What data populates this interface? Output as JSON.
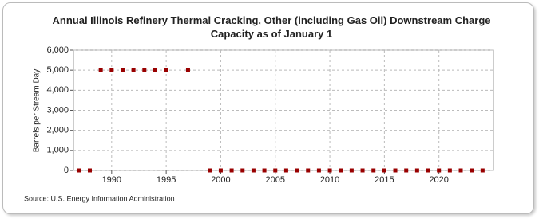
{
  "chart_data": {
    "type": "scatter",
    "title": "Annual Illinois Refinery Thermal Cracking, Other (including Gas Oil) Downstream Charge Capacity as of January 1",
    "ylabel": "Barrels per Stream Day",
    "source": "Source: U.S. Energy Information Administration",
    "x": [
      1987,
      1988,
      1989,
      1990,
      1991,
      1992,
      1993,
      1994,
      1995,
      1997,
      1999,
      2000,
      2001,
      2002,
      2003,
      2004,
      2005,
      2006,
      2007,
      2008,
      2009,
      2010,
      2011,
      2012,
      2013,
      2014,
      2015,
      2016,
      2017,
      2018,
      2019,
      2020,
      2021,
      2022,
      2023,
      2024
    ],
    "values": [
      0,
      0,
      5000,
      5000,
      5000,
      5000,
      5000,
      5000,
      5000,
      5000,
      0,
      0,
      0,
      0,
      0,
      0,
      0,
      0,
      0,
      0,
      0,
      0,
      0,
      0,
      0,
      0,
      0,
      0,
      0,
      0,
      0,
      0,
      0,
      0,
      0,
      0
    ],
    "color": "#990000",
    "xlim": [
      1986.5,
      2025
    ],
    "xticks": [
      1990,
      1995,
      2000,
      2005,
      2010,
      2015,
      2020
    ],
    "ylim": [
      0,
      6000
    ],
    "yticks": [
      0,
      {
        "value": 1000,
        "label": "1,000"
      },
      {
        "value": 2000,
        "label": "2,000"
      },
      {
        "value": 3000,
        "label": "3,000"
      },
      {
        "value": 4000,
        "label": "4,000"
      },
      {
        "value": 5000,
        "label": "5,000"
      },
      {
        "value": 6000,
        "label": "6,000"
      }
    ],
    "grid": true
  }
}
